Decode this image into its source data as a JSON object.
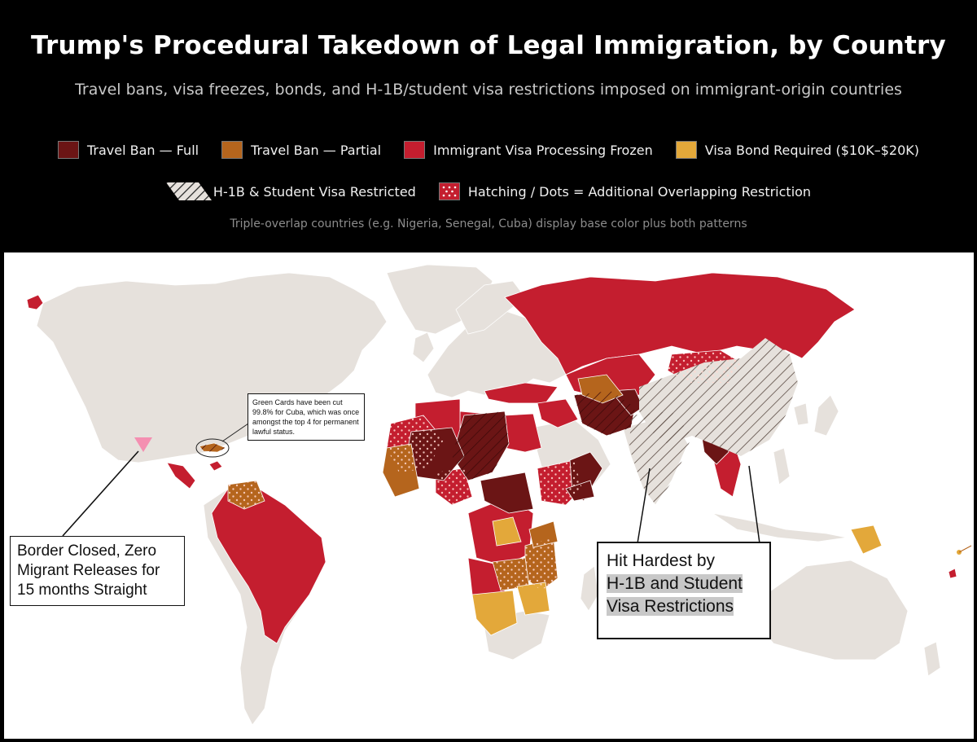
{
  "header": {
    "title": "Trump's Procedural Takedown of Legal Immigration, by Country",
    "subtitle": "Travel bans, visa freezes, bonds, and H-1B/student visa restrictions imposed on immigrant-origin countries"
  },
  "legend": {
    "row1": [
      {
        "label": "Travel Ban — Full",
        "color": "#6b1515"
      },
      {
        "label": "Travel Ban — Partial",
        "color": "#b5651d"
      },
      {
        "label": "Immigrant Visa Processing Frozen",
        "color": "#c41e2f"
      },
      {
        "label": "Visa Bond Required ($10K–$20K)",
        "color": "#e3a83a"
      }
    ],
    "row2": [
      {
        "label": "H-1B & Student Visa Restricted",
        "pattern": "diagonal-hatch"
      },
      {
        "label": "Hatching / Dots = Additional Overlapping Restriction",
        "pattern": "dots"
      }
    ],
    "note": "Triple-overlap countries (e.g. Nigeria, Senegal, Cuba) display base color plus both patterns"
  },
  "annotations": {
    "cuba": "Green Cards have been cut 99.8% for Cuba, which was once amongst the top 4 for permanent lawful status.",
    "border_line1": "Border Closed, Zero",
    "border_line2": "Migrant Releases for",
    "border_line3": "15 months Straight",
    "h1b_line1": "Hit Hardest by",
    "h1b_line2": "H-1B and Student",
    "h1b_line3": "Visa Restrictions"
  },
  "colors": {
    "land_default": "#e6e1dc",
    "ocean": "#ffffff",
    "full_ban": "#6b1515",
    "partial_ban": "#b5651d",
    "visa_frozen": "#c41e2f",
    "bond": "#e3a83a",
    "border_marker": "#f48fb1"
  }
}
